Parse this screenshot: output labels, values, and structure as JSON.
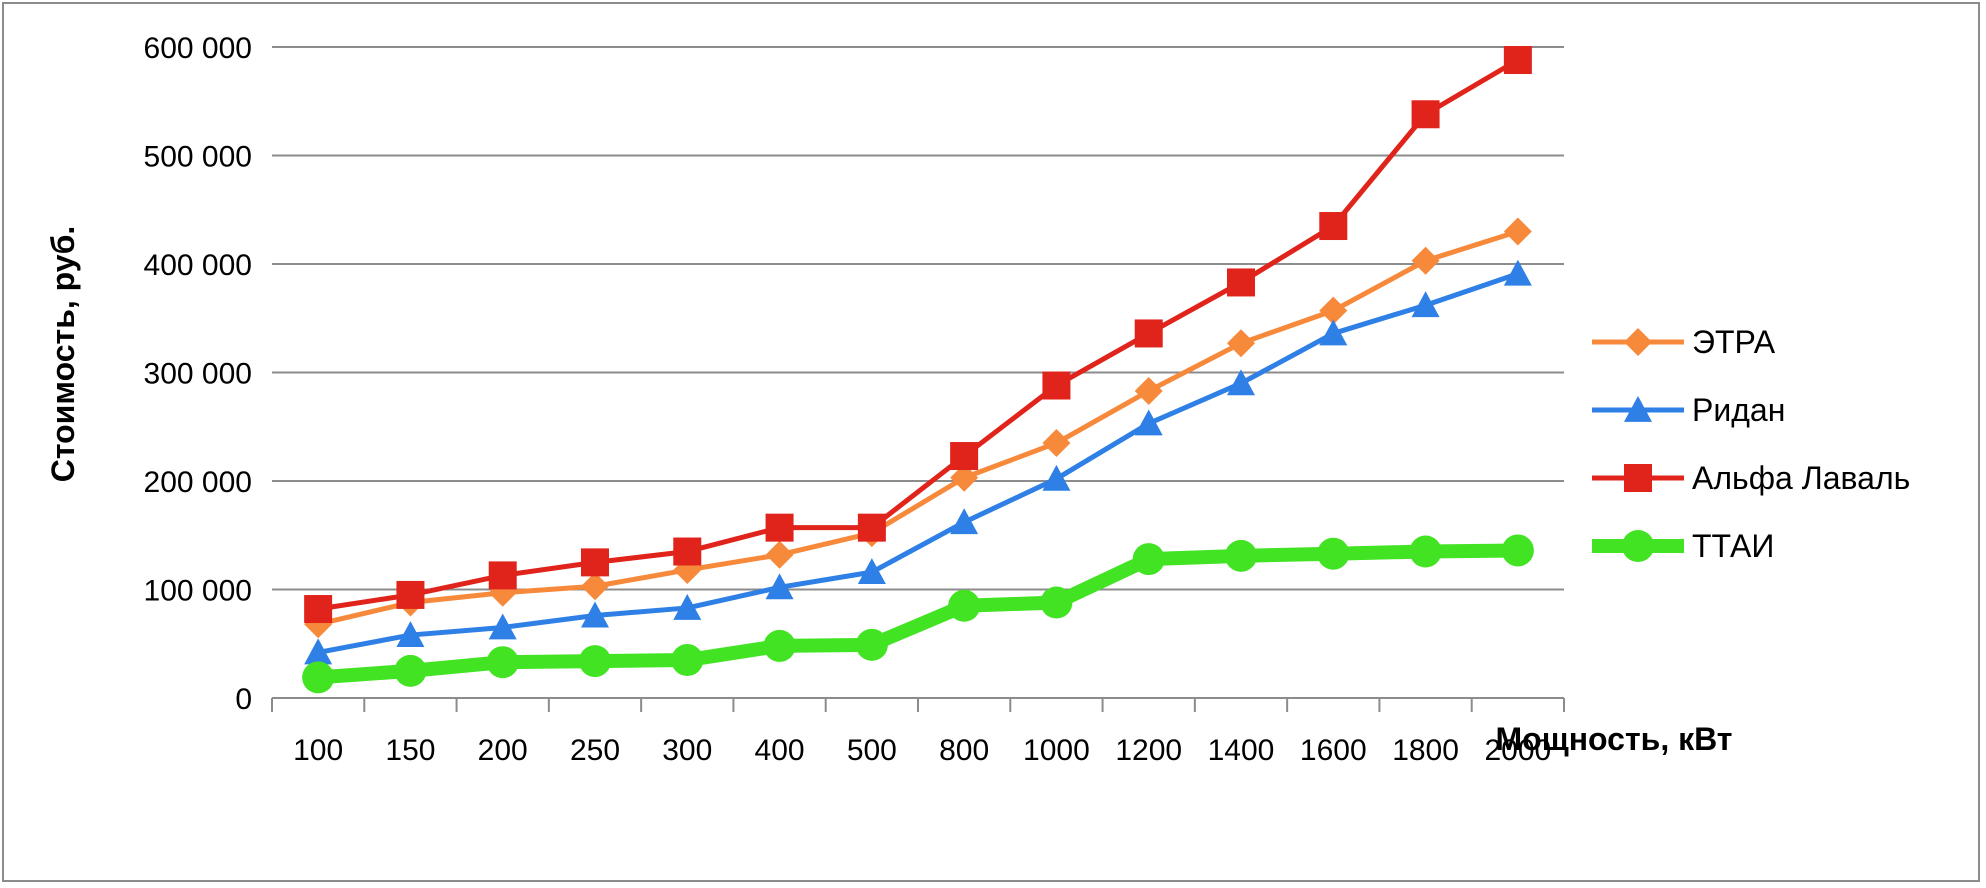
{
  "chart_data": {
    "type": "line",
    "xlabel": "Мощность, кВт",
    "ylabel": "Стоимость, руб.",
    "categories": [
      "100",
      "150",
      "200",
      "250",
      "300",
      "400",
      "500",
      "800",
      "1000",
      "1200",
      "1400",
      "1600",
      "1800",
      "2000"
    ],
    "ylim": [
      0,
      600000
    ],
    "yticks": [
      0,
      100000,
      200000,
      300000,
      400000,
      500000,
      600000
    ],
    "ytick_labels": [
      "0",
      "100 000",
      "200 000",
      "300 000",
      "400 000",
      "500 000",
      "600 000"
    ],
    "grid": "horizontal",
    "legend_position": "right",
    "series": [
      {
        "name": "ЭТРА",
        "color": "#F7893B",
        "marker": "diamond",
        "values": [
          68000,
          88000,
          97000,
          103000,
          118000,
          132000,
          152000,
          203000,
          235000,
          283000,
          327000,
          357000,
          403000,
          430000
        ]
      },
      {
        "name": "Ридан",
        "color": "#2E7FE6",
        "marker": "triangle",
        "values": [
          42000,
          58000,
          65000,
          76000,
          83000,
          102000,
          116000,
          162000,
          202000,
          253000,
          290000,
          336000,
          362000,
          391000
        ]
      },
      {
        "name": "Альфа Лаваль",
        "color": "#E0241B",
        "marker": "square",
        "values": [
          82000,
          95000,
          113000,
          125000,
          135000,
          157000,
          157000,
          223000,
          288000,
          336000,
          383000,
          435000,
          538000,
          588000
        ]
      },
      {
        "name": "ТТАИ",
        "color": "#41E323",
        "marker": "circle",
        "values": [
          19000,
          25000,
          33000,
          34000,
          35000,
          48000,
          49000,
          85000,
          88000,
          128000,
          131000,
          133000,
          135000,
          136000
        ]
      }
    ]
  }
}
